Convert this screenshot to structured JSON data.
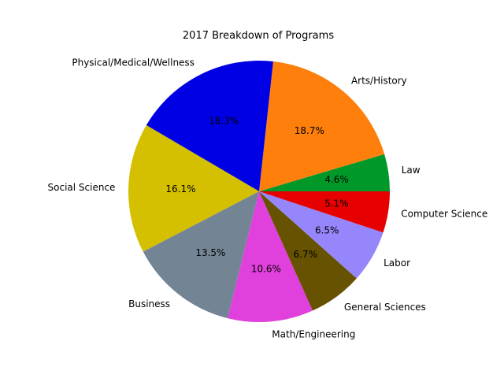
{
  "chart_data": {
    "type": "pie",
    "title": "2017 Breakdown of Programs",
    "start_angle": 0,
    "direction": "counterclockwise",
    "slices": [
      {
        "label": "Law",
        "value": 4.6,
        "pct_label": "4.6%",
        "color": "#009929"
      },
      {
        "label": "Arts/History",
        "value": 18.7,
        "pct_label": "18.7%",
        "color": "#fe7f0b"
      },
      {
        "label": "Physical/Medical/Wellness",
        "value": 18.3,
        "pct_label": "18.3%",
        "color": "#0000e5"
      },
      {
        "label": "Social Science",
        "value": 16.1,
        "pct_label": "16.1%",
        "color": "#d4c000"
      },
      {
        "label": "Business",
        "value": 13.5,
        "pct_label": "13.5%",
        "color": "#738595"
      },
      {
        "label": "Math/Engineering",
        "value": 10.6,
        "pct_label": "10.6%",
        "color": "#e040db"
      },
      {
        "label": "General Sciences",
        "value": 6.7,
        "pct_label": "6.7%",
        "color": "#665200"
      },
      {
        "label": "Labor",
        "value": 6.5,
        "pct_label": "6.5%",
        "color": "#9586fc"
      },
      {
        "label": "Computer Science",
        "value": 5.1,
        "pct_label": "5.1%",
        "color": "#e60000"
      }
    ]
  }
}
